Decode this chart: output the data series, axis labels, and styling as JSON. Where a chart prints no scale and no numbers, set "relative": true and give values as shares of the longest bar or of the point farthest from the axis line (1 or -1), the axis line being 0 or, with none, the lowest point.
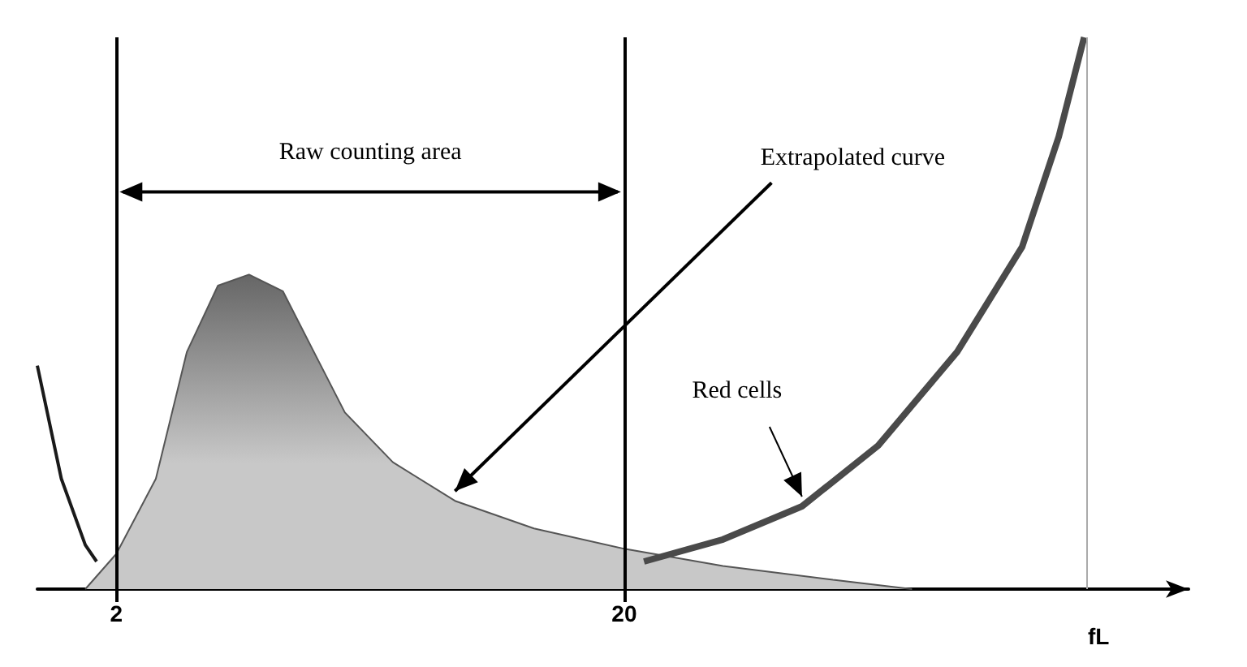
{
  "chart_data": {
    "type": "area",
    "relative": true,
    "xlabel": "fL",
    "xlim": [
      -0.8,
      40
    ],
    "xticks": [
      2,
      20
    ],
    "series": [
      {
        "type": "line",
        "color": "#1a1a1a",
        "x": [
          -0.8,
          0.05,
          0.9,
          1.3
        ],
        "values": [
          0.405,
          0.2,
          0.08,
          0.05
        ]
      },
      {
        "color": "#c8c8c8",
        "x": [
          0.9,
          2,
          3.4,
          4.5,
          5.6,
          6.7,
          7.9,
          9,
          10.1,
          11.8,
          14,
          16.8,
          20,
          23.5,
          27.4,
          30.2
        ],
        "values": [
          0,
          0.064,
          0.2,
          0.43,
          0.55,
          0.57,
          0.54,
          0.43,
          0.32,
          0.23,
          0.16,
          0.11,
          0.073,
          0.042,
          0.017,
          0
        ]
      },
      {
        "type": "line",
        "color": "#4a4a4a",
        "x": [
          20.7,
          23.5,
          26.3,
          29,
          31.8,
          34.1,
          35.4,
          36.3
        ],
        "values": [
          0.05,
          0.09,
          0.15,
          0.26,
          0.43,
          0.62,
          0.82,
          1
        ]
      }
    ],
    "ref_lines": [
      {
        "axis": "x",
        "value": 2,
        "color": "#000000"
      },
      {
        "axis": "x",
        "value": 20,
        "color": "#000000"
      },
      {
        "axis": "x",
        "value": 36.4,
        "color": "#aaaaaa"
      }
    ],
    "annotations": [
      "Raw counting area",
      "Extrapolated curve",
      "Red cells"
    ]
  }
}
